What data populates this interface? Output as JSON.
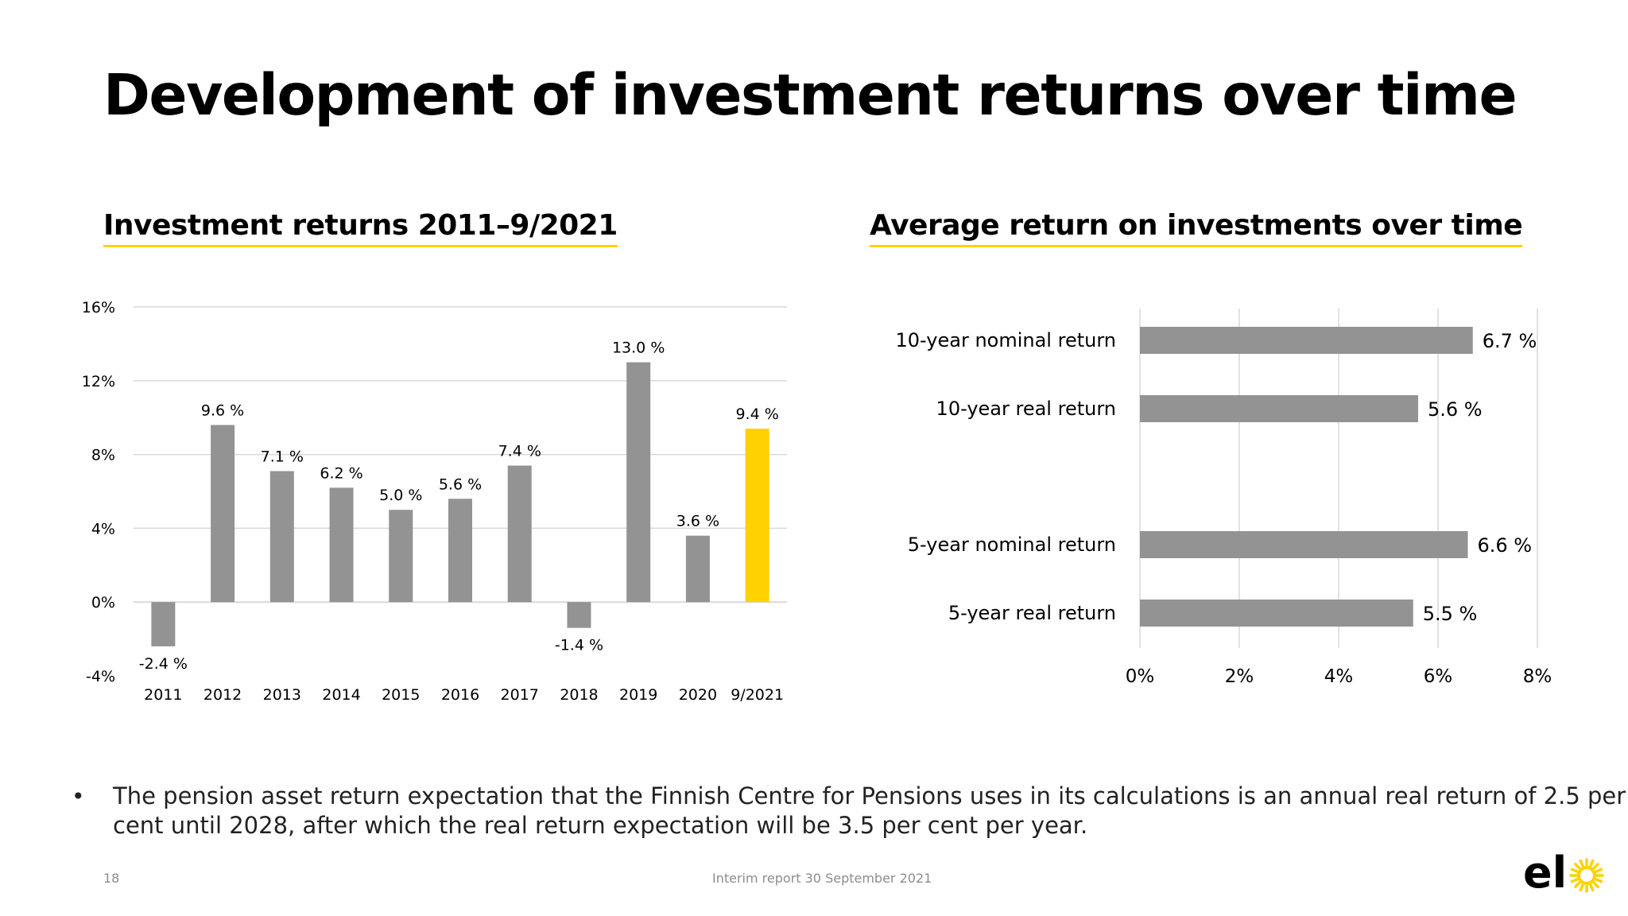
{
  "title": "Development of investment returns over time",
  "page_number": "18",
  "footer": "Interim report 30 September 2021",
  "bullet": "The pension asset return expectation that the Finnish Centre for Pensions uses in its calculations is an annual real return of 2.5 per cent until 2028, after which the real return expectation will be 3.5 per cent per year.",
  "logo_text": "elo",
  "colors": {
    "bar_gray": "#939393",
    "highlight_yellow": "#ffd200",
    "grid": "#d9d9d9",
    "underline": "#ffd200"
  },
  "chart_data": [
    {
      "type": "bar",
      "title": "Investment returns 2011–9/2021",
      "categories": [
        "2011",
        "2012",
        "2013",
        "2014",
        "2015",
        "2016",
        "2017",
        "2018",
        "2019",
        "2020",
        "9/2021"
      ],
      "values": [
        -2.4,
        9.6,
        7.1,
        6.2,
        5.0,
        5.6,
        7.4,
        -1.4,
        13.0,
        3.6,
        9.4
      ],
      "data_labels": [
        "-2.4 %",
        "9.6 %",
        "7.1 %",
        "6.2 %",
        "5.0 %",
        "5.6 %",
        "7.4 %",
        "-1.4 %",
        "13.0 %",
        "3.6 %",
        "9.4 %"
      ],
      "highlight_category": "9/2021",
      "ylim": [
        -4,
        16
      ],
      "yticks": [
        -4,
        0,
        4,
        8,
        12,
        16
      ],
      "ytick_labels": [
        "-4%",
        "0%",
        "4%",
        "8%",
        "12%",
        "16%"
      ],
      "grid": true
    },
    {
      "type": "bar",
      "orientation": "horizontal",
      "title": "Average return on investments over time",
      "categories": [
        "10-year nominal return",
        "10-year real return",
        "5-year nominal return",
        "5-year real return"
      ],
      "values": [
        6.7,
        5.6,
        6.6,
        5.5
      ],
      "data_labels": [
        "6.7 %",
        "5.6 %",
        "6.6 %",
        "5.5 %"
      ],
      "xlim": [
        0,
        8
      ],
      "xticks": [
        0,
        2,
        4,
        6,
        8
      ],
      "xtick_labels": [
        "0%",
        "2%",
        "4%",
        "6%",
        "8%"
      ],
      "grid": true
    }
  ]
}
